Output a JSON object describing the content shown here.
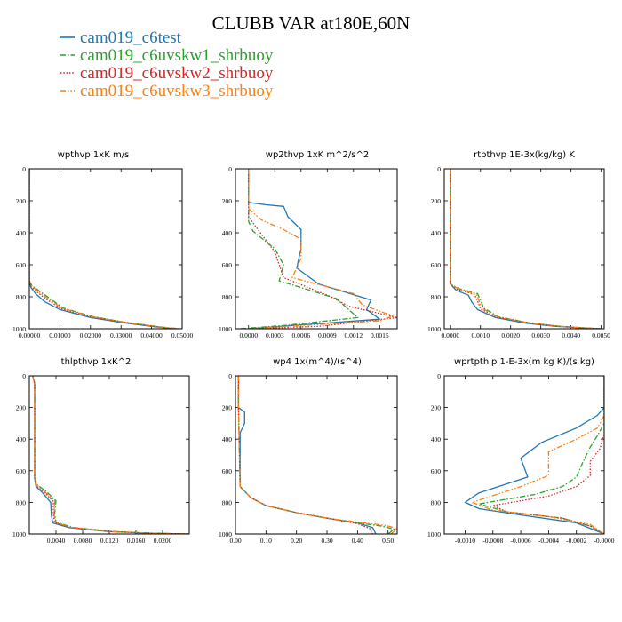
{
  "figure": {
    "title": "CLUBB VAR at180E,60N",
    "legend": [
      {
        "label": "cam019_c6test",
        "color": "#1f77b4",
        "dash": "solid"
      },
      {
        "label": "cam019_c6uvskw1_shrbuoy",
        "color": "#2ca02c",
        "dash": "dashdot"
      },
      {
        "label": "cam019_c6uvskw2_shrbuoy",
        "color": "#d62728",
        "dash": "dotted"
      },
      {
        "label": "cam019_c6uvskw3_shrbuoy",
        "color": "#ff7f0e",
        "dash": "dashdotdot"
      }
    ]
  },
  "chart_data": [
    {
      "type": "line",
      "title": "wpthvp  1xK m/s",
      "xlim": [
        0,
        0.05
      ],
      "ylim": [
        1000,
        0
      ],
      "xticks": [
        0,
        0.01,
        0.02,
        0.03,
        0.04,
        0.05
      ],
      "xtick_labels": [
        "0.00000",
        "0.01000",
        "0.02000",
        "0.03000",
        "0.04000",
        "0.05000"
      ],
      "yticks": [
        0,
        200,
        400,
        600,
        800,
        1000
      ],
      "ytick_labels": [
        "0",
        "200",
        "400",
        "600",
        "800",
        "1000"
      ],
      "series": [
        {
          "x": [
            0,
            0,
            0.0005,
            0.002,
            0.005,
            0.01,
            0.02,
            0.03,
            0.04,
            0.045,
            0.048
          ],
          "y": [
            0,
            700,
            740,
            780,
            830,
            880,
            930,
            960,
            985,
            995,
            1000
          ]
        },
        {
          "x": [
            0,
            0,
            0.0008,
            0.003,
            0.006,
            0.011,
            0.021,
            0.031,
            0.041,
            0.046,
            0.049
          ],
          "y": [
            0,
            700,
            730,
            760,
            800,
            870,
            925,
            958,
            984,
            995,
            1000
          ]
        },
        {
          "x": [
            0,
            0,
            0.0006,
            0.0025,
            0.0055,
            0.0105,
            0.0205,
            0.0305,
            0.0405,
            0.0455,
            0.0485
          ],
          "y": [
            0,
            700,
            735,
            770,
            815,
            875,
            928,
            959,
            985,
            995,
            1000
          ]
        },
        {
          "x": [
            0,
            0,
            0.0007,
            0.0028,
            0.0058,
            0.0108,
            0.0208,
            0.0308,
            0.0408,
            0.0458,
            0.0495
          ],
          "y": [
            0,
            700,
            732,
            765,
            808,
            872,
            926,
            958,
            984,
            995,
            1000
          ]
        }
      ]
    },
    {
      "type": "line",
      "title": "wp2thvp  1xK m^2/s^2",
      "xlim": [
        -0.00015,
        0.0017
      ],
      "ylim": [
        1000,
        0
      ],
      "xticks": [
        0,
        0.0003,
        0.0006,
        0.0009,
        0.0012,
        0.0015
      ],
      "xtick_labels": [
        "0.0000",
        "0.0003",
        "0.0006",
        "0.0009",
        "0.0012",
        "0.0015"
      ],
      "yticks": [
        0,
        200,
        400,
        600,
        800,
        1000
      ],
      "ytick_labels": [
        "0",
        "200",
        "400",
        "600",
        "800",
        "1000"
      ],
      "series": [
        {
          "x": [
            0,
            0,
            0.0002,
            0.0004,
            0.00045,
            0.0006,
            0.0006,
            0.00055,
            0.0008,
            0.0014,
            0.00135,
            0.0015,
            0.0005,
            0
          ],
          "y": [
            0,
            210,
            225,
            235,
            300,
            380,
            500,
            620,
            720,
            820,
            880,
            940,
            980,
            1000
          ]
        },
        {
          "x": [
            0,
            0,
            5e-05,
            0.0003,
            0.0004,
            0.00035,
            0.001,
            0.00125,
            0.0004,
            -0.0001
          ],
          "y": [
            0,
            330,
            390,
            500,
            600,
            700,
            810,
            930,
            980,
            1000
          ]
        },
        {
          "x": [
            0,
            0,
            8e-05,
            0.0003,
            0.0004,
            0.0009,
            0.00115,
            0.0017,
            0.0008,
            0
          ],
          "y": [
            0,
            300,
            360,
            520,
            680,
            790,
            860,
            930,
            985,
            1000
          ]
        },
        {
          "x": [
            0,
            0,
            0.00015,
            0.0004,
            0.0006,
            0.0006,
            0.0005,
            0.0012,
            0.0013,
            0.00165,
            0.0015,
            0
          ],
          "y": [
            0,
            250,
            320,
            380,
            440,
            560,
            680,
            780,
            850,
            920,
            950,
            1000
          ]
        }
      ]
    },
    {
      "type": "line",
      "title": "rtpthvp  1E-3x(kg/kg) K",
      "xlim": [
        -0.0002,
        0.0051
      ],
      "ylim": [
        1000,
        0
      ],
      "xticks": [
        0,
        0.001,
        0.002,
        0.003,
        0.004,
        0.005
      ],
      "xtick_labels": [
        "0.0000",
        "0.0010",
        "0.0020",
        "0.0030",
        "0.0040",
        "0.0050"
      ],
      "yticks": [
        0,
        200,
        400,
        600,
        800,
        1000
      ],
      "ytick_labels": [
        "0",
        "200",
        "400",
        "600",
        "800",
        "1000"
      ],
      "series": [
        {
          "x": [
            0,
            0,
            0.0002,
            0.0006,
            0.0007,
            0.0009,
            0.0015,
            0.0025,
            0.0035,
            0.0045,
            0.005
          ],
          "y": [
            0,
            720,
            760,
            790,
            830,
            880,
            930,
            965,
            985,
            996,
            1000
          ]
        },
        {
          "x": [
            0,
            0,
            0.0003,
            0.0009,
            0.001,
            0.0011,
            0.0016,
            0.0026,
            0.0036,
            0.0046,
            0.005
          ],
          "y": [
            0,
            720,
            750,
            780,
            820,
            870,
            925,
            962,
            984,
            996,
            1000
          ]
        },
        {
          "x": [
            0,
            0,
            0.00025,
            0.0008,
            0.0009,
            0.001,
            0.00155,
            0.00255,
            0.00355,
            0.00455,
            0.005
          ],
          "y": [
            0,
            720,
            755,
            785,
            825,
            875,
            928,
            963,
            985,
            996,
            1000
          ]
        },
        {
          "x": [
            0,
            0,
            0.00028,
            0.00085,
            0.00095,
            0.00105,
            0.00158,
            0.00258,
            0.00358,
            0.00458,
            0.005
          ],
          "y": [
            0,
            720,
            752,
            782,
            822,
            872,
            926,
            962,
            984,
            996,
            1000
          ]
        }
      ]
    },
    {
      "type": "line",
      "title": "thlpthvp  1xK^2",
      "xlim": [
        0,
        0.024
      ],
      "ylim": [
        1000,
        0
      ],
      "xticks": [
        0.004,
        0.008,
        0.012,
        0.016,
        0.02
      ],
      "xtick_labels": [
        "0.0040",
        "0.0080",
        "0.0120",
        "0.0160",
        "0.0200"
      ],
      "yticks": [
        0,
        200,
        400,
        600,
        800,
        1000
      ],
      "ytick_labels": [
        "0",
        "200",
        "400",
        "600",
        "800",
        "1000"
      ],
      "series": [
        {
          "x": [
            0.0005,
            0.0008,
            0.0008,
            0.001,
            0.002,
            0.0032,
            0.0033,
            0.0035,
            0.006,
            0.012,
            0.018,
            0.022,
            0.024
          ],
          "y": [
            0,
            50,
            650,
            700,
            740,
            800,
            880,
            930,
            960,
            985,
            995,
            999,
            1000
          ]
        },
        {
          "x": [
            0.0005,
            0.0008,
            0.0008,
            0.0012,
            0.0025,
            0.004,
            0.0038,
            0.004,
            0.0065,
            0.0125,
            0.0185,
            0.0225,
            0.024
          ],
          "y": [
            0,
            50,
            650,
            690,
            730,
            790,
            870,
            925,
            958,
            984,
            995,
            999,
            1000
          ]
        },
        {
          "x": [
            0.0005,
            0.0008,
            0.0008,
            0.0011,
            0.0022,
            0.0036,
            0.0036,
            0.0038,
            0.0062,
            0.0122,
            0.0182,
            0.0222,
            0.024
          ],
          "y": [
            0,
            50,
            650,
            695,
            735,
            795,
            875,
            928,
            959,
            985,
            995,
            999,
            1000
          ]
        },
        {
          "x": [
            0.0005,
            0.0008,
            0.0008,
            0.0011,
            0.0023,
            0.0038,
            0.0037,
            0.0039,
            0.0063,
            0.0123,
            0.0183,
            0.0223,
            0.024
          ],
          "y": [
            0,
            50,
            650,
            692,
            732,
            792,
            872,
            926,
            958,
            984,
            995,
            999,
            1000
          ]
        }
      ]
    },
    {
      "type": "line",
      "title": "wp4  1x(m^4)/(s^4)",
      "xlim": [
        0,
        0.53
      ],
      "ylim": [
        1000,
        0
      ],
      "xticks": [
        0,
        0.1,
        0.2,
        0.3,
        0.4,
        0.5
      ],
      "xtick_labels": [
        "0.00",
        "0.10",
        "0.20",
        "0.30",
        "0.40",
        "0.50"
      ],
      "yticks": [
        0,
        200,
        400,
        600,
        800,
        1000
      ],
      "ytick_labels": [
        "0",
        "200",
        "400",
        "600",
        "800",
        "1000"
      ],
      "series": [
        {
          "x": [
            0.01,
            0.01,
            0.03,
            0.03,
            0.015,
            0.015,
            0.05,
            0.1,
            0.2,
            0.3,
            0.4,
            0.45,
            0.46
          ],
          "y": [
            0,
            200,
            230,
            300,
            360,
            700,
            770,
            820,
            865,
            900,
            930,
            960,
            1000
          ]
        },
        {
          "x": [
            0.01,
            0.01,
            0.015,
            0.05,
            0.1,
            0.2,
            0.3,
            0.4,
            0.48,
            0.52,
            0.5
          ],
          "y": [
            0,
            200,
            700,
            770,
            820,
            865,
            900,
            930,
            950,
            970,
            1000
          ]
        },
        {
          "x": [
            0.01,
            0.01,
            0.015,
            0.05,
            0.1,
            0.2,
            0.3,
            0.4,
            0.44,
            0.45
          ],
          "y": [
            0,
            200,
            700,
            770,
            820,
            865,
            900,
            935,
            965,
            1000
          ]
        },
        {
          "x": [
            0.01,
            0.01,
            0.015,
            0.05,
            0.1,
            0.2,
            0.3,
            0.4,
            0.49,
            0.53,
            0.51
          ],
          "y": [
            0,
            200,
            700,
            770,
            820,
            865,
            900,
            925,
            945,
            965,
            1000
          ]
        }
      ]
    },
    {
      "type": "line",
      "title": "wprtpthlp  1-E-3x(m kg K)/(s kg)",
      "xlim": [
        -0.00115,
        0.0
      ],
      "ylim": [
        1000,
        0
      ],
      "xticks": [
        -0.001,
        -0.0008,
        -0.0006,
        -0.0004,
        -0.0002,
        0
      ],
      "xtick_labels": [
        "-0.0010",
        "-0.0008",
        "-0.0006",
        "-0.0004",
        "-0.0002",
        "-0.0000"
      ],
      "yticks": [
        0,
        200,
        400,
        600,
        800,
        1000
      ],
      "ytick_labels": [
        "0",
        "200",
        "400",
        "600",
        "800",
        "1000"
      ],
      "series": [
        {
          "x": [
            0,
            0,
            -5e-05,
            -0.0002,
            -0.00045,
            -0.0006,
            -0.00055,
            -0.0009,
            -0.001,
            -0.0009,
            -0.0006,
            -0.0002,
            0
          ],
          "y": [
            0,
            200,
            250,
            330,
            420,
            520,
            640,
            740,
            800,
            840,
            880,
            930,
            1000
          ]
        },
        {
          "x": [
            0,
            0,
            -5e-05,
            -0.0001,
            -0.00015,
            -0.0002,
            -0.0003,
            -0.0005,
            -0.0009,
            -0.0007,
            -0.0003,
            -0.0001,
            0
          ],
          "y": [
            0,
            300,
            380,
            450,
            540,
            640,
            700,
            750,
            810,
            860,
            900,
            950,
            1000
          ]
        },
        {
          "x": [
            0,
            0,
            -3e-05,
            -0.0001,
            -0.0001,
            -0.0002,
            -0.0004,
            -0.0008,
            -0.0007,
            -0.0003,
            -0.0001,
            0
          ],
          "y": [
            0,
            360,
            460,
            540,
            630,
            700,
            760,
            820,
            860,
            900,
            950,
            1000
          ]
        },
        {
          "x": [
            0,
            0,
            -5e-05,
            -0.0002,
            -0.0004,
            -0.0004,
            -0.0006,
            -0.00095,
            -0.0008,
            -0.0004,
            -0.0001,
            0
          ],
          "y": [
            0,
            250,
            330,
            400,
            480,
            630,
            700,
            800,
            850,
            890,
            940,
            1000
          ]
        }
      ]
    }
  ]
}
